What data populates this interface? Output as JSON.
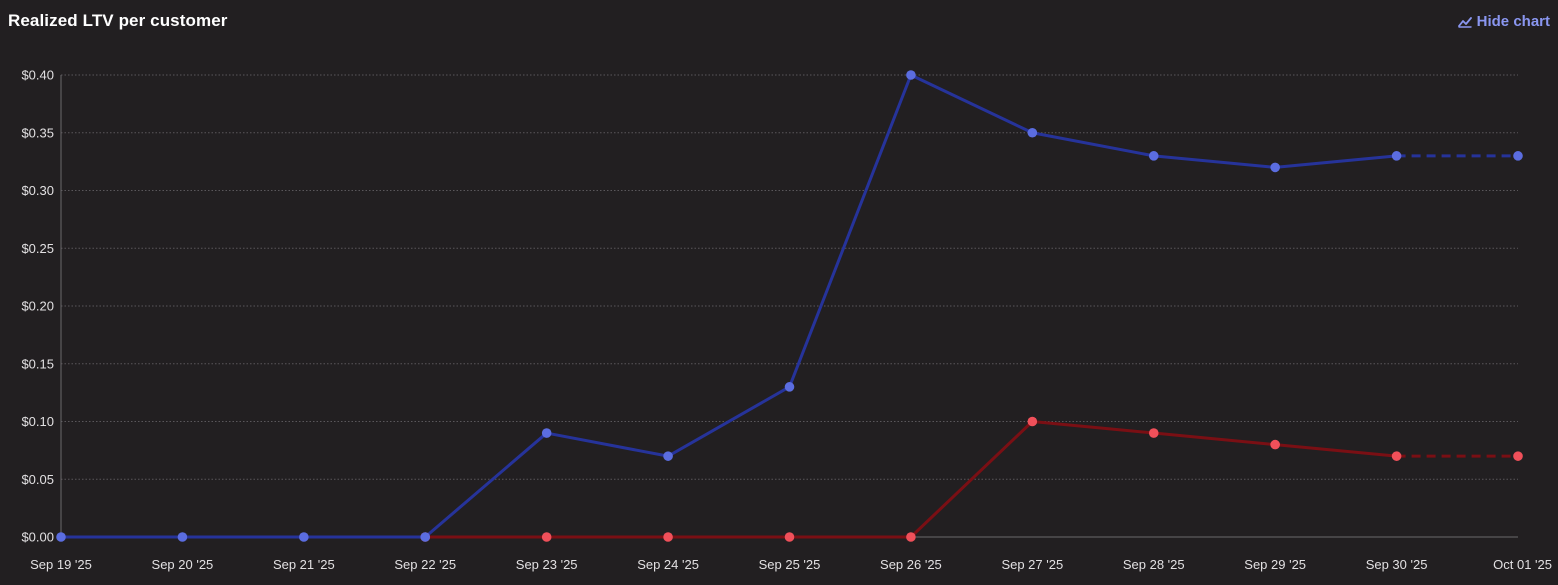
{
  "header": {
    "title": "Realized LTV per customer",
    "hide_chart_label": "Hide chart"
  },
  "colors": {
    "background": "#221f21",
    "series_blue_line": "#26339a",
    "series_blue_point": "#5b6de0",
    "series_red_line": "#7a0f14",
    "series_red_point": "#f0505a",
    "accent": "#8a96f0"
  },
  "chart_data": {
    "type": "line",
    "title": "Realized LTV per customer",
    "xlabel": "",
    "ylabel": "",
    "ylim": [
      0,
      0.4
    ],
    "y_ticks": [
      "$0.00",
      "$0.05",
      "$0.10",
      "$0.15",
      "$0.20",
      "$0.25",
      "$0.30",
      "$0.35",
      "$0.40"
    ],
    "y_tick_values": [
      0,
      0.05,
      0.1,
      0.15,
      0.2,
      0.25,
      0.3,
      0.35,
      0.4
    ],
    "grid": true,
    "legend": "none",
    "categories": [
      "Sep 19 '25",
      "Sep 20 '25",
      "Sep 21 '25",
      "Sep 22 '25",
      "Sep 23 '25",
      "Sep 24 '25",
      "Sep 25 '25",
      "Sep 26 '25",
      "Sep 27 '25",
      "Sep 28 '25",
      "Sep 29 '25",
      "Sep 30 '25",
      "Oct 01 '25"
    ],
    "series": [
      {
        "color": "#26339a",
        "point_color": "#5b6de0",
        "values": [
          0,
          0,
          0,
          0,
          0.09,
          0.07,
          0.13,
          0.4,
          0.35,
          0.33,
          0.32,
          0.33,
          0.33
        ],
        "dashed_from_index": 11
      },
      {
        "color": "#7a0f14",
        "point_color": "#f0505a",
        "start_index": 3,
        "values": [
          null,
          null,
          null,
          0,
          0,
          0,
          0,
          0,
          0.1,
          0.09,
          0.08,
          0.07,
          0.07
        ],
        "dashed_from_index": 11
      }
    ]
  }
}
